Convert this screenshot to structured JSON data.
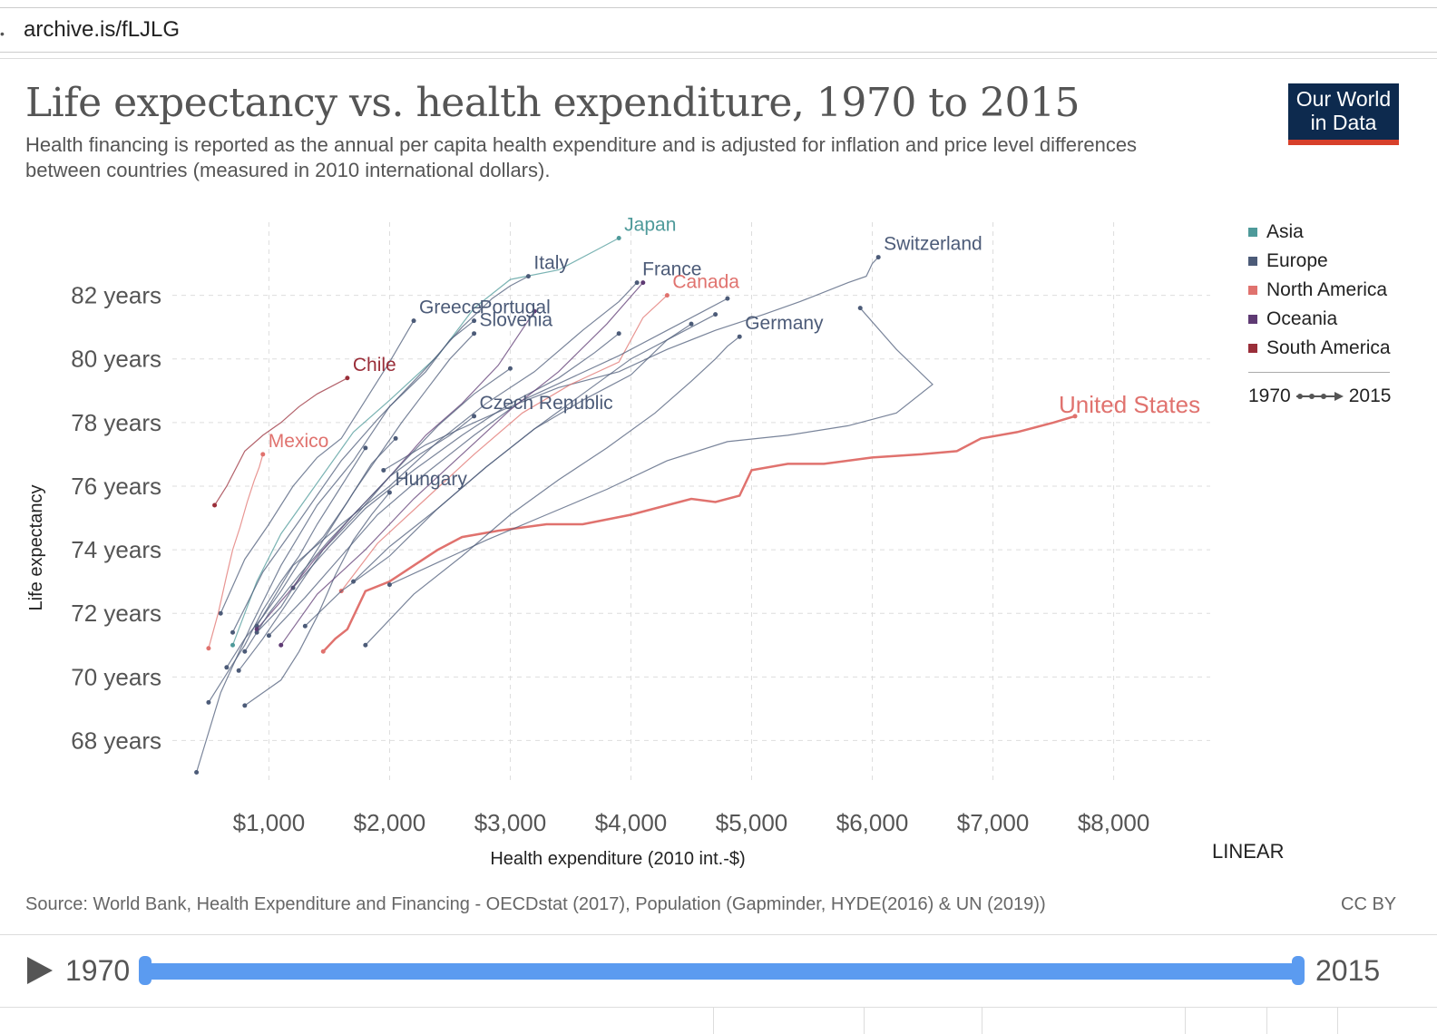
{
  "browser": {
    "url": "archive.is/fLJLG"
  },
  "header": {
    "title": "Life expectancy vs. health expenditure, 1970 to 2015",
    "subtitle": "Health financing is reported as the annual per capita health expenditure and is adjusted for inflation and price level differences between countries (measured in 2010 international dollars).",
    "logo_line1": "Our World",
    "logo_line2": "in Data",
    "logo_bg": "#0d2a4e",
    "logo_accent": "#d7402a"
  },
  "legend": {
    "items": [
      {
        "label": "Asia",
        "color": "#4e9a9a"
      },
      {
        "label": "Europe",
        "color": "#4c5b78"
      },
      {
        "label": "North America",
        "color": "#e0726e"
      },
      {
        "label": "Oceania",
        "color": "#5e3a73"
      },
      {
        "label": "South America",
        "color": "#9a2e39"
      }
    ],
    "time_start": "1970",
    "time_end": "2015"
  },
  "controls": {
    "scale_toggle": "LINEAR"
  },
  "footer": {
    "source": "Source: World Bank, Health Expenditure and Financing - OECDstat (2017), Population (Gapminder, HYDE(2016) & UN (2019))",
    "license": "CC BY"
  },
  "timeline": {
    "start": "1970",
    "end": "2015"
  },
  "chart_data": {
    "type": "line",
    "title": "Life expectancy vs. health expenditure, 1970 to 2015",
    "xlabel": "Health expenditure (2010 int.-$)",
    "ylabel": "Life expectancy",
    "xlim": [
      200,
      8800
    ],
    "ylim": [
      66.7,
      84.3
    ],
    "x_ticks": [
      1000,
      2000,
      3000,
      4000,
      5000,
      6000,
      7000,
      8000
    ],
    "x_tick_labels": [
      "$1,000",
      "$2,000",
      "$3,000",
      "$4,000",
      "$5,000",
      "$6,000",
      "$7,000",
      "$8,000"
    ],
    "y_ticks": [
      68,
      70,
      72,
      74,
      76,
      78,
      80,
      82
    ],
    "y_tick_labels": [
      "68 years",
      "70 years",
      "72 years",
      "74 years",
      "76 years",
      "78 years",
      "80 years",
      "82 years"
    ],
    "grid": true,
    "legend_position": "right",
    "series": [
      {
        "name": "United States",
        "region": "North America",
        "color": "#e0726e",
        "x": [
          1450,
          1550,
          1650,
          1800,
          2000,
          2200,
          2400,
          2600,
          2900,
          3300,
          3600,
          4000,
          4300,
          4500,
          4700,
          4900,
          5000,
          5300,
          5600,
          6000,
          6400,
          6700,
          6900,
          7200,
          7500,
          7680
        ],
        "y": [
          70.8,
          71.2,
          71.5,
          72.7,
          73.0,
          73.5,
          74.0,
          74.4,
          74.6,
          74.8,
          74.8,
          75.1,
          75.4,
          75.6,
          75.5,
          75.7,
          76.5,
          76.7,
          76.7,
          76.9,
          77.0,
          77.1,
          77.5,
          77.7,
          78.0,
          78.2
        ]
      },
      {
        "name": "Switzerland",
        "region": "Europe",
        "color": "#4c5b78",
        "x": [
          1950,
          2300,
          2700,
          3000,
          3400,
          3900,
          4300,
          4700,
          5100,
          5400,
          5800,
          5950,
          6000,
          6050
        ],
        "y": [
          76.5,
          77.3,
          78.0,
          78.5,
          79.1,
          79.6,
          80.3,
          80.9,
          81.4,
          81.8,
          82.4,
          82.6,
          83.0,
          83.2
        ]
      },
      {
        "name": "Germany",
        "region": "Europe",
        "color": "#4c5b78",
        "x": [
          1800,
          2200,
          2600,
          3000,
          3400,
          3800,
          4200,
          4500,
          4700,
          4800,
          4900
        ],
        "y": [
          71.0,
          72.6,
          73.8,
          75.1,
          76.2,
          77.2,
          78.3,
          79.3,
          80.0,
          80.4,
          80.7
        ]
      },
      {
        "name": "Canada",
        "region": "North America",
        "color": "#e0726e",
        "x": [
          1600,
          1900,
          2300,
          2700,
          3100,
          3500,
          3900,
          4100,
          4300
        ],
        "y": [
          72.7,
          74.2,
          75.6,
          77.0,
          78.3,
          79.2,
          79.9,
          81.3,
          82.0
        ]
      },
      {
        "name": "Japan",
        "region": "Asia",
        "color": "#4e9a9a",
        "x": [
          700,
          900,
          1100,
          1400,
          1700,
          2000,
          2400,
          2700,
          3000,
          3400,
          3700,
          3900
        ],
        "y": [
          71.0,
          73.0,
          74.5,
          76.1,
          77.7,
          78.7,
          80.1,
          81.6,
          82.5,
          82.8,
          83.4,
          83.8
        ]
      },
      {
        "name": "France",
        "region": "Europe",
        "color": "#4c5b78",
        "x": [
          900,
          1200,
          1600,
          2000,
          2400,
          2800,
          3200,
          3600,
          3900,
          4050
        ],
        "y": [
          71.6,
          73.5,
          74.8,
          76.0,
          77.4,
          78.6,
          79.6,
          80.9,
          81.8,
          82.4
        ]
      },
      {
        "name": "Italy",
        "region": "Europe",
        "color": "#4c5b78",
        "x": [
          700,
          950,
          1250,
          1600,
          1900,
          2300,
          2600,
          2850,
          3000,
          3150
        ],
        "y": [
          71.4,
          73.3,
          74.9,
          76.8,
          78.1,
          79.7,
          81.0,
          81.9,
          82.3,
          82.6
        ]
      },
      {
        "name": "Portugal",
        "region": "Europe",
        "color": "#4c5b78",
        "x": [
          400,
          600,
          850,
          1100,
          1400,
          1700,
          2000,
          2300,
          2500,
          2700
        ],
        "y": [
          67.0,
          69.5,
          71.6,
          73.5,
          75.4,
          76.8,
          78.5,
          79.6,
          80.6,
          81.2
        ]
      },
      {
        "name": "Slovenia",
        "region": "Europe",
        "color": "#4c5b78",
        "x": [
          900,
          1100,
          1300,
          1500,
          1700,
          1900,
          2100,
          2300,
          2500,
          2700
        ],
        "y": [
          71.4,
          72.2,
          73.4,
          74.6,
          75.8,
          76.9,
          78.0,
          79.0,
          80.0,
          80.8
        ]
      },
      {
        "name": "Greece",
        "region": "Europe",
        "color": "#4c5b78",
        "x": [
          600,
          800,
          1000,
          1200,
          1400,
          1600,
          1800,
          2000,
          2200
        ],
        "y": [
          72.0,
          73.7,
          74.8,
          76.0,
          76.9,
          77.5,
          78.7,
          79.9,
          81.2
        ]
      },
      {
        "name": "Chile",
        "region": "South America",
        "color": "#9a2e39",
        "x": [
          550,
          650,
          800,
          950,
          1100,
          1250,
          1400,
          1550,
          1650
        ],
        "y": [
          75.4,
          76.0,
          77.1,
          77.6,
          78.0,
          78.5,
          78.9,
          79.2,
          79.4
        ]
      },
      {
        "name": "Mexico",
        "region": "North America",
        "color": "#e0726e",
        "x": [
          500,
          580,
          650,
          700,
          760,
          820,
          880,
          920,
          950
        ],
        "y": [
          70.9,
          72.0,
          73.2,
          74.0,
          74.7,
          75.5,
          76.2,
          76.6,
          77.0
        ]
      },
      {
        "name": "Czech Republic",
        "region": "Europe",
        "color": "#4c5b78",
        "x": [
          750,
          950,
          1200,
          1450,
          1750,
          2000,
          2250,
          2500,
          2700
        ],
        "y": [
          70.2,
          71.2,
          72.6,
          74.0,
          75.2,
          76.3,
          77.0,
          77.6,
          78.2
        ]
      },
      {
        "name": "Hungary",
        "region": "Europe",
        "color": "#4c5b78",
        "x": [
          800,
          950,
          1100,
          1250,
          1400,
          1550,
          1700,
          1850,
          2000
        ],
        "y": [
          69.1,
          69.5,
          69.9,
          70.8,
          71.9,
          73.2,
          74.3,
          75.1,
          75.8
        ]
      },
      {
        "name": "",
        "region": "Europe",
        "color": "#4c5b78",
        "x": [
          1000,
          1300,
          1600,
          1900,
          2300,
          2700,
          3100,
          3500,
          3900,
          4300,
          4600,
          4800
        ],
        "y": [
          71.3,
          72.5,
          73.8,
          75.1,
          76.4,
          77.6,
          78.7,
          79.4,
          80.1,
          80.9,
          81.5,
          81.9
        ]
      },
      {
        "name": "",
        "region": "Europe",
        "color": "#4c5b78",
        "x": [
          1300,
          1600,
          2000,
          2400,
          2800,
          3200,
          3600,
          4000,
          4300,
          4500
        ],
        "y": [
          71.6,
          72.7,
          73.8,
          75.3,
          76.6,
          77.8,
          78.7,
          79.5,
          80.6,
          81.1
        ]
      },
      {
        "name": "",
        "region": "Europe",
        "color": "#4c5b78",
        "x": [
          1200,
          1500,
          1800,
          2200,
          2600,
          3000,
          3400,
          3700,
          3900
        ],
        "y": [
          72.8,
          74.1,
          75.3,
          76.5,
          77.6,
          78.6,
          79.4,
          80.2,
          80.8
        ]
      },
      {
        "name": "",
        "region": "Europe",
        "color": "#4c5b78",
        "x": [
          1700,
          2000,
          2400,
          2800,
          3200,
          3600,
          4000,
          4400,
          4700
        ],
        "y": [
          73.0,
          74.1,
          75.3,
          76.6,
          77.8,
          78.9,
          80.0,
          80.8,
          81.4
        ]
      },
      {
        "name": "",
        "region": "Oceania",
        "color": "#5e3a73",
        "x": [
          1100,
          1400,
          1800,
          2200,
          2600,
          3000,
          3400,
          3800,
          4100
        ],
        "y": [
          71.0,
          72.6,
          74.0,
          75.6,
          77.0,
          78.4,
          79.6,
          81.1,
          82.4
        ]
      },
      {
        "name": "",
        "region": "Oceania",
        "color": "#5e3a73",
        "x": [
          900,
          1150,
          1400,
          1700,
          2000,
          2300,
          2600,
          2900,
          3200
        ],
        "y": [
          71.5,
          72.6,
          73.8,
          75.1,
          76.3,
          77.6,
          78.6,
          79.8,
          81.5
        ]
      },
      {
        "name": "",
        "region": "Europe",
        "color": "#4c5b78",
        "x": [
          500,
          650,
          800,
          950,
          1100,
          1250,
          1400,
          1600,
          1800
        ],
        "y": [
          69.2,
          70.1,
          71.0,
          72.1,
          73.0,
          73.8,
          74.8,
          76.0,
          77.2
        ]
      },
      {
        "name": "",
        "region": "Europe",
        "color": "#4c5b78",
        "x": [
          650,
          800,
          950,
          1100,
          1250,
          1450,
          1650,
          1850,
          2050
        ],
        "y": [
          70.3,
          71.2,
          71.9,
          72.7,
          73.6,
          74.4,
          75.5,
          76.7,
          77.5
        ]
      },
      {
        "name": "",
        "region": "Europe",
        "color": "#4c5b78",
        "x": [
          800,
          1000,
          1250,
          1500,
          1800,
          2100,
          2400,
          2700,
          3000
        ],
        "y": [
          70.8,
          72.0,
          73.2,
          74.3,
          75.5,
          76.7,
          77.9,
          78.9,
          79.7
        ]
      },
      {
        "name": "",
        "region": "Europe",
        "color": "#4c5b78",
        "x": [
          2000,
          2400,
          2800,
          3300,
          3800,
          4300,
          4800,
          5300,
          5800,
          6200,
          6500,
          6200,
          5900
        ],
        "y": [
          72.9,
          73.6,
          74.3,
          75.1,
          75.9,
          76.8,
          77.4,
          77.6,
          77.9,
          78.3,
          79.2,
          80.3,
          81.6
        ]
      }
    ],
    "annotations": [
      "Japan",
      "Switzerland",
      "Canada",
      "Italy",
      "France",
      "Portugal",
      "Greece",
      "Slovenia",
      "Germany",
      "Chile",
      "Czech Republic",
      "United States",
      "Mexico",
      "Hungary"
    ]
  }
}
